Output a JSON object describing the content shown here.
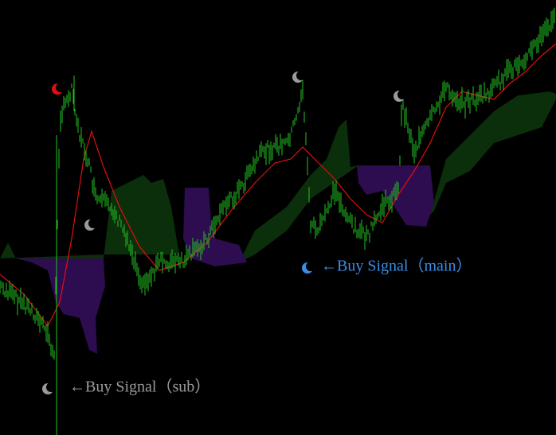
{
  "annotations": [
    {
      "text": "←Buy Signal（main）",
      "color": "#3b8de6"
    },
    {
      "text": "←Buy Signal（sub）",
      "color": "#9a9a9a"
    }
  ]
}
